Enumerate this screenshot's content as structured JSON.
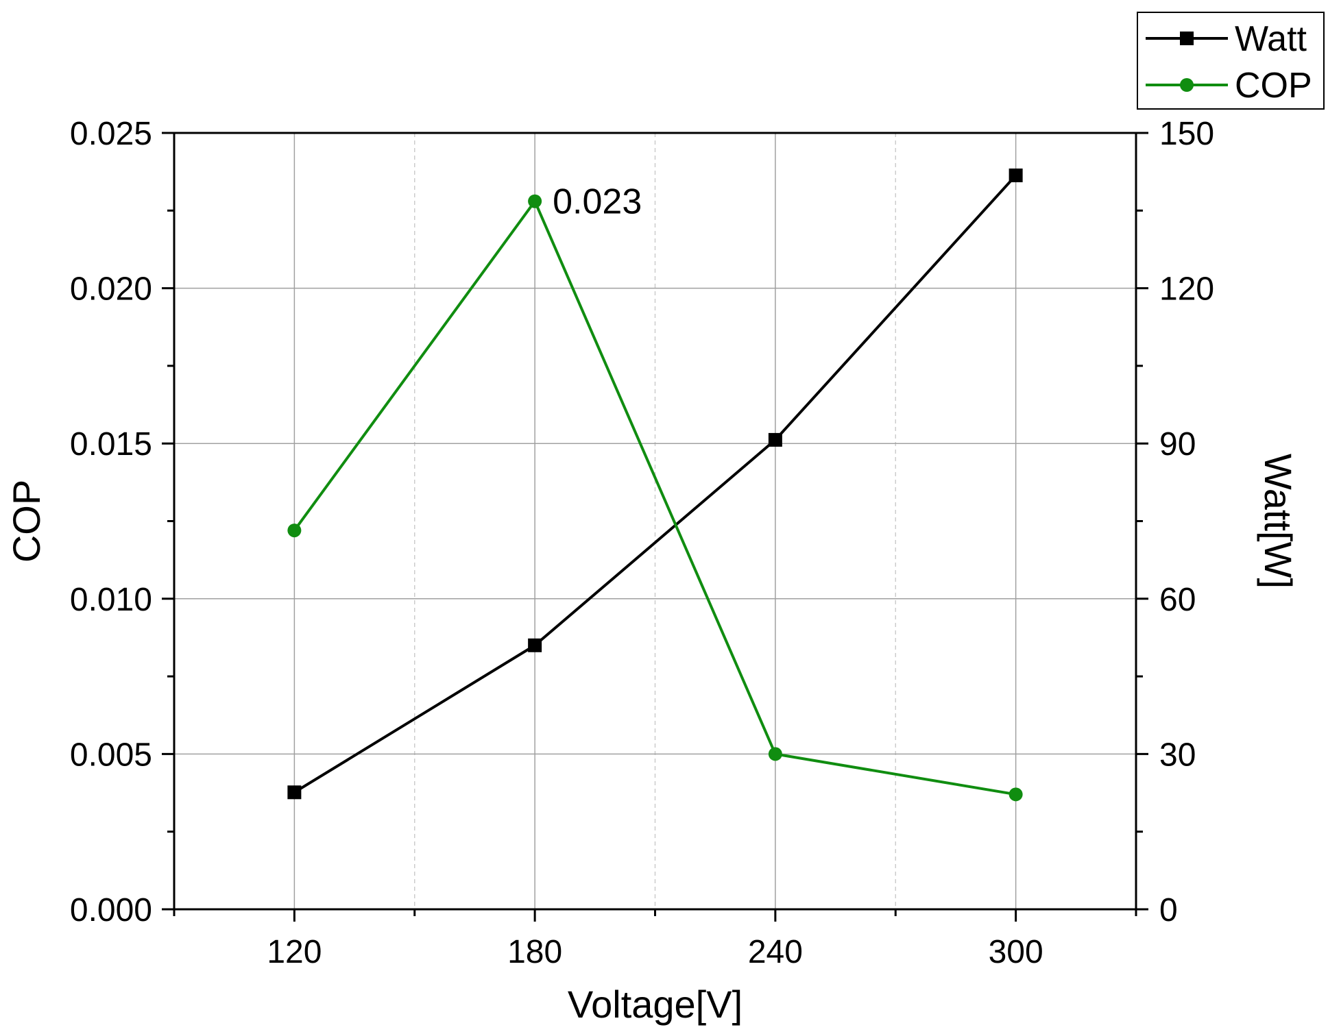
{
  "chart_data": {
    "type": "line",
    "xlabel": "Voltage[V]",
    "ylabel_left": "COP",
    "ylabel_right": "Watt[W]",
    "x": [
      120,
      180,
      240,
      300
    ],
    "x_ticks": [
      "120",
      "180",
      "240",
      "300"
    ],
    "xlim": [
      90,
      330
    ],
    "ylim_left": [
      0,
      0.025
    ],
    "ylim_right": [
      0,
      150
    ],
    "y_ticks_left": [
      "0.000",
      "0.005",
      "0.010",
      "0.015",
      "0.020",
      "0.025"
    ],
    "y_ticks_right": [
      "0",
      "30",
      "60",
      "90",
      "120",
      "150"
    ],
    "grid": true,
    "legend_position": "top-right, outside plot",
    "series": [
      {
        "name": "Watt",
        "axis": "right",
        "marker": "square",
        "color": "#000000",
        "values": [
          22.6,
          51.0,
          90.7,
          141.8
        ]
      },
      {
        "name": "COP",
        "axis": "left",
        "marker": "circle",
        "color": "#108d10",
        "values": [
          0.0122,
          0.0228,
          0.005,
          0.0037
        ]
      }
    ],
    "annotations": [
      {
        "text": "0.023",
        "series": "COP",
        "x": 180,
        "color": "#108d10"
      }
    ]
  }
}
